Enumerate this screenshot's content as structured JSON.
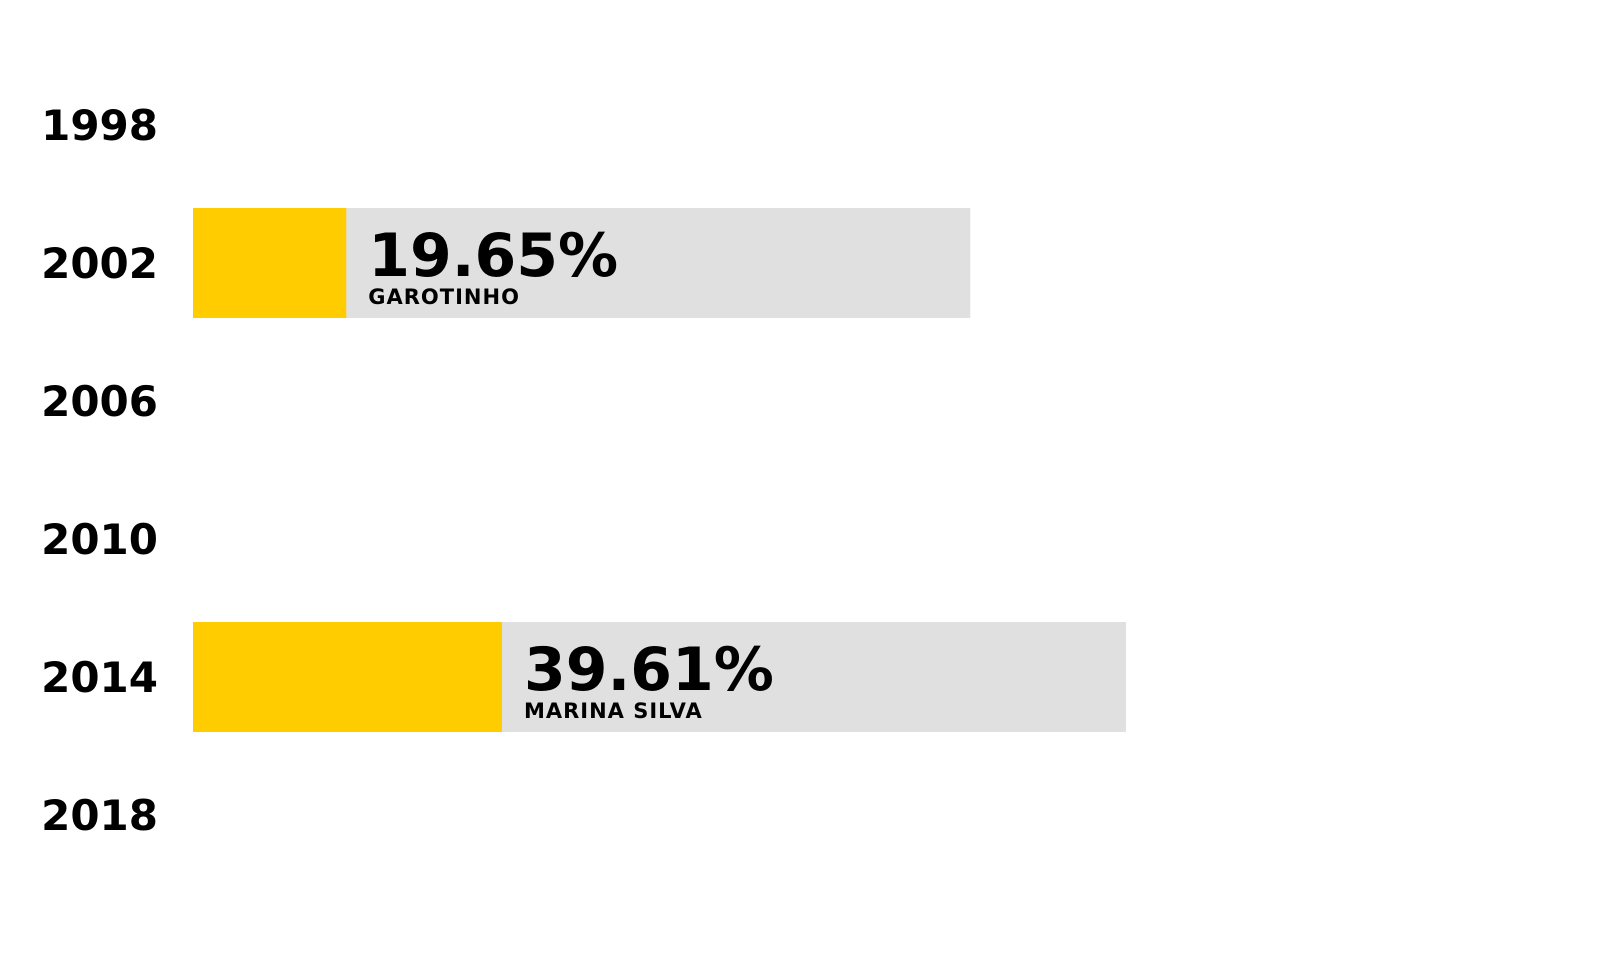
{
  "chart_data": {
    "type": "bar",
    "orientation": "horizontal",
    "categories": [
      "1998",
      "2002",
      "2006",
      "2010",
      "2014",
      "2018"
    ],
    "series": [
      {
        "values": [
          null,
          19.65,
          null,
          null,
          39.61,
          null
        ],
        "value_labels": [
          "",
          "19.65%",
          "",
          "",
          "39.61%",
          ""
        ],
        "candidates": [
          "",
          "GAROTINHO",
          "",
          "",
          "MARINA SILVA",
          ""
        ]
      }
    ],
    "xlim": [
      0,
      100
    ],
    "grid": false,
    "legend": "none",
    "colors": {
      "bar": "#ffcc00",
      "track": "#e0e0e0",
      "text": "#000000"
    }
  }
}
